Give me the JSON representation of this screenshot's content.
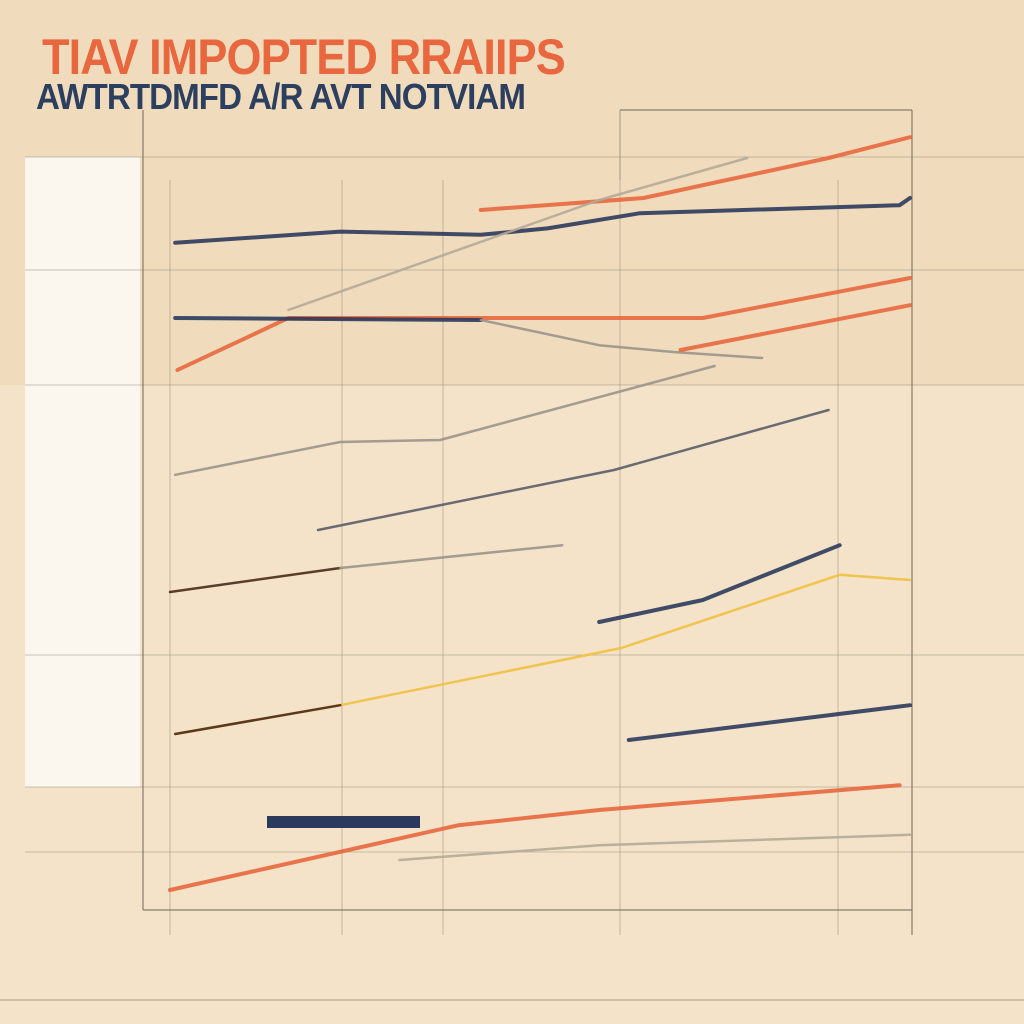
{
  "title": "TIAV IMPOPTED RRAIIPS",
  "subtitle": "AWTRTDMFD A/R AVT NOTVIAM",
  "colors": {
    "background": "#f0dcbc",
    "title": "#e8673e",
    "subtitle": "#2d3f5e",
    "navy": "#2b3a5c",
    "orange": "#e8673e",
    "gray": "#9a948a",
    "yellow": "#f0c040",
    "brown": "#4a2a1a"
  },
  "chart_data": {
    "type": "line",
    "title": "TIAV IMPOPTED RRAIIPS",
    "subtitle": "AWTRTDMFD A/R AVT NOTVIAM",
    "xlim": [
      0,
      10
    ],
    "ylim": [
      0,
      100
    ],
    "grid": true,
    "series": [
      {
        "color": "#2b3a5c",
        "points": [
          [
            0.07,
            83.4
          ],
          [
            2.3,
            84.8
          ],
          [
            4.2,
            84.4
          ],
          [
            5.1,
            85.2
          ],
          [
            6.35,
            87.1
          ],
          [
            9.86,
            88.1
          ],
          [
            10,
            89
          ]
        ]
      },
      {
        "color": "#e8673e",
        "points": [
          [
            4.2,
            87.5
          ],
          [
            6.4,
            89
          ],
          [
            8.9,
            94
          ],
          [
            10,
            96.6
          ]
        ]
      },
      {
        "color": "#b5aa98",
        "points": [
          [
            1.6,
            75
          ],
          [
            5.8,
            88.75
          ],
          [
            7.8,
            94
          ]
        ]
      },
      {
        "color": "#e8673e",
        "points": [
          [
            0.1,
            67.5
          ],
          [
            1.6,
            74
          ],
          [
            7.2,
            74
          ],
          [
            10,
            79
          ]
        ]
      },
      {
        "color": "#2b3a5c",
        "points": [
          [
            0.07,
            74
          ],
          [
            4.2,
            73.75
          ]
        ]
      },
      {
        "color": "#9a948a",
        "points": [
          [
            4.2,
            73.75
          ],
          [
            5.8,
            70.6
          ],
          [
            6.8,
            69.75
          ],
          [
            8,
            69
          ]
        ]
      },
      {
        "color": "#e8673e",
        "points": [
          [
            6.9,
            70
          ],
          [
            10,
            75.6
          ]
        ]
      },
      {
        "color": "#9a948a",
        "points": [
          [
            0.07,
            54.4
          ],
          [
            2.3,
            58.5
          ],
          [
            3.65,
            58.75
          ],
          [
            7.36,
            68
          ]
        ]
      },
      {
        "color": "#5a5c68",
        "points": [
          [
            2,
            47.5
          ],
          [
            6,
            55
          ],
          [
            8.9,
            62.5
          ]
        ]
      },
      {
        "color": "#4a2a1a",
        "points": [
          [
            0,
            39.75
          ],
          [
            2.3,
            42.75
          ]
        ]
      },
      {
        "color": "#9a948a",
        "points": [
          [
            2.3,
            42.75
          ],
          [
            5.3,
            45.6
          ]
        ]
      },
      {
        "color": "#2b3a5c",
        "points": [
          [
            5.8,
            36
          ],
          [
            7.2,
            38.75
          ],
          [
            9.05,
            45.6
          ]
        ]
      },
      {
        "color": "#f0c040",
        "points": [
          [
            0.07,
            22
          ],
          [
            2.3,
            25.6
          ],
          [
            6.1,
            32.75
          ],
          [
            9.05,
            41.9
          ],
          [
            10,
            41.25
          ]
        ]
      },
      {
        "color": "#4a2a1a",
        "points": [
          [
            0.07,
            22
          ],
          [
            2.3,
            25.6
          ]
        ]
      },
      {
        "color": "#2b3a5c",
        "points": [
          [
            6.2,
            21.25
          ],
          [
            10,
            25.6
          ]
        ]
      },
      {
        "color": "#e8673e",
        "points": [
          [
            0,
            2.5
          ],
          [
            3.9,
            10.6
          ],
          [
            5.8,
            12.5
          ],
          [
            9.86,
            15.6
          ]
        ]
      },
      {
        "color": "#b5aa98",
        "points": [
          [
            3.1,
            6.25
          ],
          [
            5.8,
            8.1
          ],
          [
            10,
            9.4
          ]
        ]
      }
    ]
  }
}
